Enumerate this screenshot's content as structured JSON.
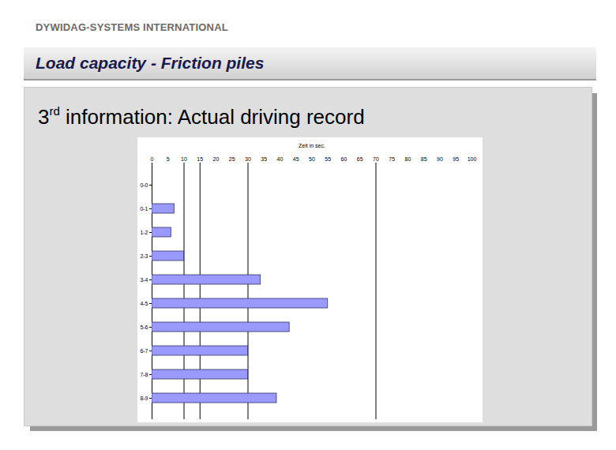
{
  "header": {
    "company": "DYWIDAG-SYSTEMS INTERNATIONAL",
    "title": "Load capacity - Friction piles",
    "heading": {
      "number": "3",
      "superscript": "rd",
      "text": " information: Actual driving record"
    }
  },
  "chart_data": {
    "type": "bar",
    "orientation": "horizontal",
    "x_label": "Zeit in sec.",
    "categories": [
      "0-0",
      "0-1",
      "1-2",
      "2-3",
      "3-4",
      "4-5",
      "5-6",
      "6-7",
      "7-8",
      "8-9"
    ],
    "values": [
      0,
      7,
      6,
      10,
      34,
      55,
      43,
      30,
      30,
      39
    ],
    "color": "#9999ff",
    "xlim": [
      0,
      100
    ],
    "xticks": [
      0,
      5,
      10,
      15,
      20,
      25,
      30,
      35,
      40,
      45,
      50,
      55,
      60,
      65,
      70,
      75,
      80,
      85,
      90,
      95,
      100
    ],
    "reference_lines": [
      10,
      15,
      30,
      70
    ],
    "grid": false
  }
}
